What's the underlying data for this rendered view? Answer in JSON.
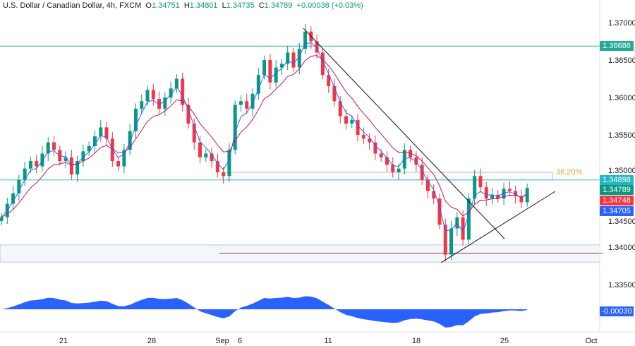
{
  "header": {
    "symbol": "U.S. Dollar / Canadian Dollar, 4h, FXCM",
    "open_label": "O",
    "open": "1.34751",
    "high_label": "H",
    "high": "1.34801",
    "low_label": "L",
    "low": "1.34735",
    "close_label": "C",
    "close": "1.34789",
    "change": "+0.00038 (+0.03%)"
  },
  "price_labels": [
    {
      "text": "1.36686",
      "color": "#22ab94",
      "price": 1.36686
    },
    {
      "text": "1.34898",
      "color": "#26b5c4",
      "price": 1.34898
    },
    {
      "text": "1.34789",
      "color": "#089981",
      "price": 1.34789
    },
    {
      "text": "1.34748",
      "color": "#f23645",
      "price": 1.34748
    },
    {
      "text": "1.34705",
      "color": "#2962ff",
      "price": 1.34705
    }
  ],
  "osc_label": {
    "text": "-0.00030",
    "color": "#2962ff"
  },
  "fib_label": "38.20%",
  "chart_data": {
    "type": "candlestick",
    "y_ticks": [
      "1.37000",
      "1.36500",
      "1.36000",
      "1.35500",
      "1.35000",
      "1.34500",
      "1.34000",
      "1.33500"
    ],
    "y_tick_values": [
      1.37,
      1.365,
      1.36,
      1.355,
      1.35,
      1.345,
      1.34,
      1.335
    ],
    "x_ticks": [
      "21",
      "28",
      "Sep",
      "6",
      "11",
      "18",
      "25",
      "Oct"
    ],
    "closes": [
      1.344,
      1.3458,
      1.3472,
      1.349,
      1.3505,
      1.3515,
      1.3508,
      1.3525,
      1.354,
      1.353,
      1.3515,
      1.352,
      1.3497,
      1.3515,
      1.3528,
      1.3535,
      1.3548,
      1.356,
      1.3545,
      1.3515,
      1.3508,
      1.353,
      1.3555,
      1.3585,
      1.3595,
      1.361,
      1.3598,
      1.3585,
      1.36,
      1.3612,
      1.3625,
      1.359,
      1.3565,
      1.354,
      1.352,
      1.3525,
      1.3515,
      1.35,
      1.3495,
      1.353,
      1.359,
      1.3595,
      1.3585,
      1.3605,
      1.363,
      1.365,
      1.362,
      1.364,
      1.3645,
      1.366,
      1.364,
      1.3665,
      1.3688,
      1.3675,
      1.366,
      1.363,
      1.3615,
      1.3595,
      1.3575,
      1.3565,
      1.357,
      1.355,
      1.3545,
      1.354,
      1.3525,
      1.352,
      1.351,
      1.35,
      1.3505,
      1.353,
      1.352,
      1.351,
      1.349,
      1.3475,
      1.3465,
      1.343,
      1.339,
      1.3425,
      1.344,
      1.341,
      1.3465,
      1.3495,
      1.348,
      1.3465,
      1.347,
      1.3465,
      1.3478,
      1.3475,
      1.3468,
      1.346,
      1.3479
    ],
    "resistance_level": 1.36686,
    "fib_zone": [
      1.34898,
      1.35
    ],
    "support_zone": [
      1.338,
      1.3403
    ],
    "support_line": 1.3392,
    "up_color": "#089981",
    "down_color": "#f23645",
    "fast_ma_color": "#2962ff",
    "slow_ma_color": "#c2185b",
    "osc_color": "#2962ff"
  }
}
